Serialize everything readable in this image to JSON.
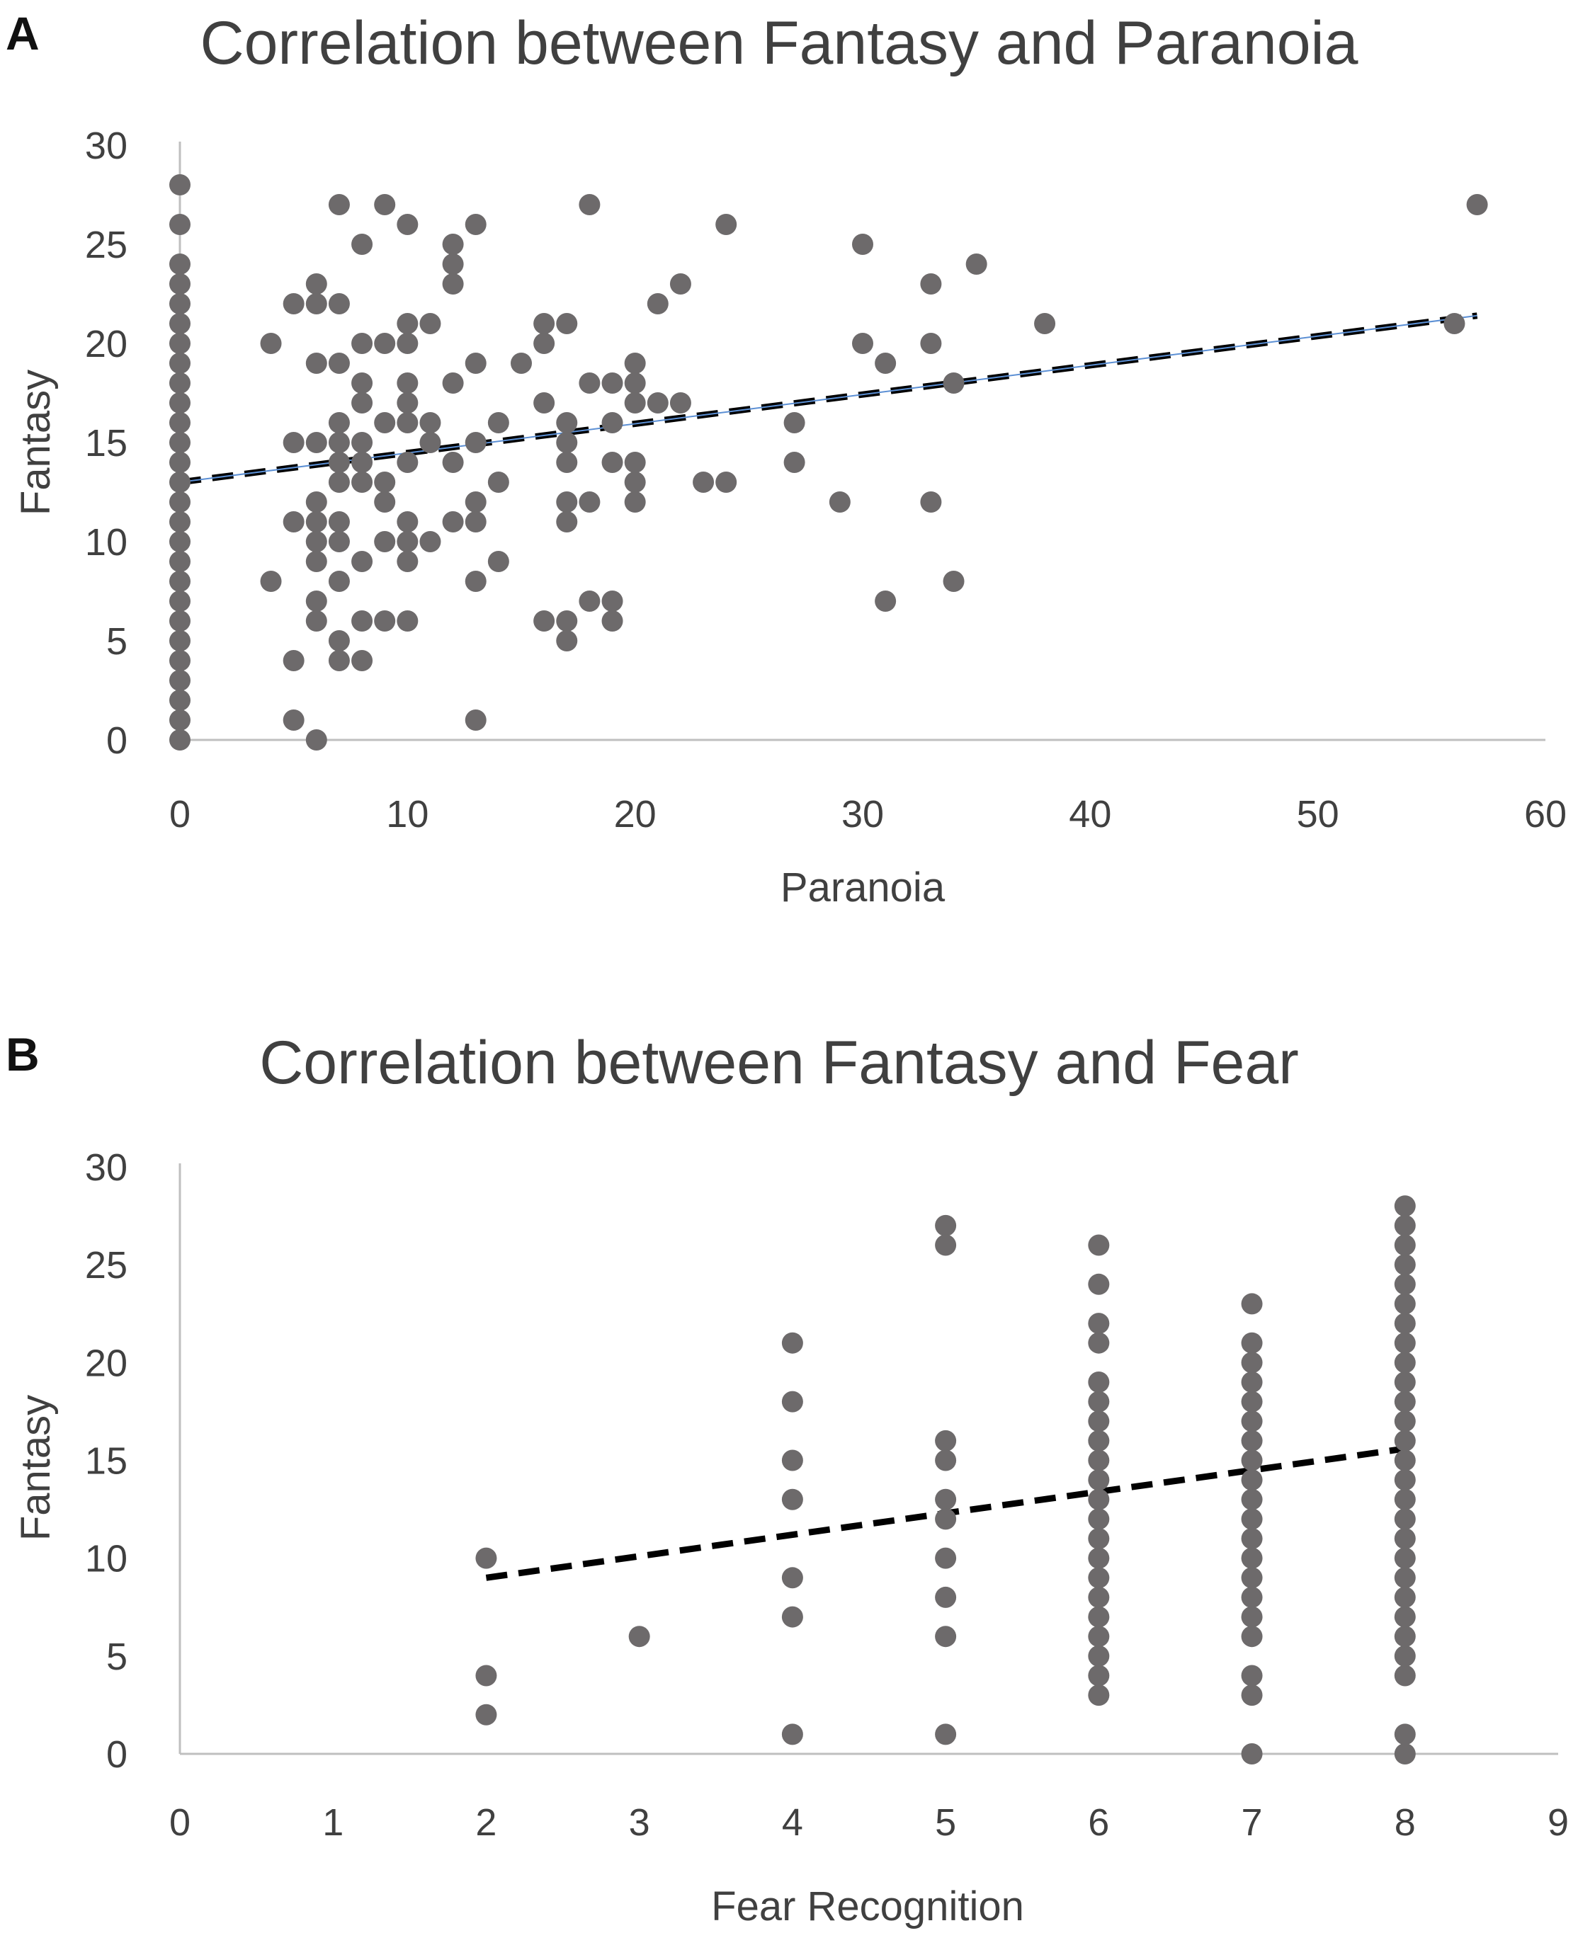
{
  "panels": [
    {
      "letter": "A"
    },
    {
      "letter": "B"
    }
  ],
  "chart_data": [
    {
      "type": "scatter",
      "title": "Correlation between Fantasy and Paranoia",
      "xlabel": "Paranoia",
      "ylabel": "Fantasy",
      "xlim": [
        0,
        60
      ],
      "ylim": [
        0,
        30
      ],
      "xticks": [
        "0",
        "10",
        "20",
        "30",
        "40",
        "50",
        "60"
      ],
      "yticks": [
        "0",
        "5",
        "10",
        "15",
        "20",
        "25",
        "30"
      ],
      "grid": false,
      "trendline": {
        "style": "dashed",
        "x": [
          0,
          57
        ],
        "y": [
          13,
          21.4
        ]
      },
      "points": [
        [
          0,
          0
        ],
        [
          0,
          1
        ],
        [
          0,
          2
        ],
        [
          0,
          3
        ],
        [
          0,
          4
        ],
        [
          0,
          5
        ],
        [
          0,
          6
        ],
        [
          0,
          7
        ],
        [
          0,
          8
        ],
        [
          0,
          9
        ],
        [
          0,
          10
        ],
        [
          0,
          11
        ],
        [
          0,
          12
        ],
        [
          0,
          13
        ],
        [
          0,
          14
        ],
        [
          0,
          15
        ],
        [
          0,
          16
        ],
        [
          0,
          17
        ],
        [
          0,
          18
        ],
        [
          0,
          19
        ],
        [
          0,
          20
        ],
        [
          0,
          21
        ],
        [
          0,
          22
        ],
        [
          0,
          23
        ],
        [
          0,
          24
        ],
        [
          0,
          26
        ],
        [
          0,
          28
        ],
        [
          4,
          20
        ],
        [
          4,
          8
        ],
        [
          5,
          22
        ],
        [
          5,
          15
        ],
        [
          5,
          11
        ],
        [
          5,
          4
        ],
        [
          5,
          1
        ],
        [
          6,
          23
        ],
        [
          6,
          22
        ],
        [
          6,
          19
        ],
        [
          6,
          15
        ],
        [
          6,
          12
        ],
        [
          6,
          11
        ],
        [
          6,
          10
        ],
        [
          6,
          9
        ],
        [
          6,
          7
        ],
        [
          6,
          6
        ],
        [
          6,
          0
        ],
        [
          7,
          27
        ],
        [
          7,
          22
        ],
        [
          7,
          19
        ],
        [
          7,
          16
        ],
        [
          7,
          15
        ],
        [
          7,
          14
        ],
        [
          7,
          13
        ],
        [
          7,
          11
        ],
        [
          7,
          10
        ],
        [
          7,
          8
        ],
        [
          7,
          5
        ],
        [
          7,
          4
        ],
        [
          8,
          25
        ],
        [
          8,
          20
        ],
        [
          8,
          18
        ],
        [
          8,
          17
        ],
        [
          8,
          15
        ],
        [
          8,
          14
        ],
        [
          8,
          13
        ],
        [
          8,
          9
        ],
        [
          8,
          6
        ],
        [
          8,
          4
        ],
        [
          9,
          27
        ],
        [
          9,
          20
        ],
        [
          9,
          16
        ],
        [
          9,
          13
        ],
        [
          9,
          12
        ],
        [
          9,
          10
        ],
        [
          9,
          6
        ],
        [
          10,
          26
        ],
        [
          10,
          21
        ],
        [
          10,
          20
        ],
        [
          10,
          18
        ],
        [
          10,
          17
        ],
        [
          10,
          16
        ],
        [
          10,
          14
        ],
        [
          10,
          11
        ],
        [
          10,
          10
        ],
        [
          10,
          9
        ],
        [
          10,
          6
        ],
        [
          11,
          21
        ],
        [
          11,
          16
        ],
        [
          11,
          15
        ],
        [
          11,
          10
        ],
        [
          12,
          25
        ],
        [
          12,
          24
        ],
        [
          12,
          23
        ],
        [
          12,
          18
        ],
        [
          12,
          14
        ],
        [
          12,
          11
        ],
        [
          13,
          26
        ],
        [
          13,
          19
        ],
        [
          13,
          15
        ],
        [
          13,
          12
        ],
        [
          13,
          11
        ],
        [
          13,
          8
        ],
        [
          13,
          1
        ],
        [
          14,
          16
        ],
        [
          14,
          13
        ],
        [
          14,
          9
        ],
        [
          15,
          19
        ],
        [
          16,
          21
        ],
        [
          16,
          20
        ],
        [
          16,
          17
        ],
        [
          16,
          6
        ],
        [
          17,
          21
        ],
        [
          17,
          16
        ],
        [
          17,
          15
        ],
        [
          17,
          14
        ],
        [
          17,
          12
        ],
        [
          17,
          11
        ],
        [
          17,
          6
        ],
        [
          17,
          5
        ],
        [
          18,
          27
        ],
        [
          18,
          18
        ],
        [
          18,
          12
        ],
        [
          18,
          7
        ],
        [
          19,
          18
        ],
        [
          19,
          16
        ],
        [
          19,
          14
        ],
        [
          19,
          7
        ],
        [
          19,
          6
        ],
        [
          20,
          19
        ],
        [
          20,
          18
        ],
        [
          20,
          17
        ],
        [
          20,
          14
        ],
        [
          20,
          13
        ],
        [
          20,
          12
        ],
        [
          21,
          22
        ],
        [
          21,
          17
        ],
        [
          22,
          23
        ],
        [
          22,
          17
        ],
        [
          23,
          13
        ],
        [
          24,
          26
        ],
        [
          24,
          13
        ],
        [
          27,
          16
        ],
        [
          27,
          14
        ],
        [
          29,
          12
        ],
        [
          30,
          25
        ],
        [
          30,
          20
        ],
        [
          31,
          19
        ],
        [
          31,
          7
        ],
        [
          33,
          23
        ],
        [
          33,
          20
        ],
        [
          33,
          12
        ],
        [
          34,
          18
        ],
        [
          34,
          8
        ],
        [
          35,
          24
        ],
        [
          38,
          21
        ],
        [
          56,
          21
        ],
        [
          57,
          27
        ]
      ]
    },
    {
      "type": "scatter",
      "title": "Correlation between Fantasy and Fear",
      "xlabel": "Fear Recognition",
      "ylabel": "Fantasy",
      "xlim": [
        0,
        9
      ],
      "ylim": [
        0,
        30
      ],
      "xticks": [
        "0",
        "1",
        "2",
        "3",
        "4",
        "5",
        "6",
        "7",
        "8",
        "9"
      ],
      "yticks": [
        "0",
        "5",
        "10",
        "15",
        "20",
        "25",
        "30"
      ],
      "grid": false,
      "trendline": {
        "style": "dashed",
        "x": [
          2,
          8
        ],
        "y": [
          9,
          15.6
        ]
      },
      "points": [
        [
          2,
          10
        ],
        [
          2,
          4
        ],
        [
          2,
          2
        ],
        [
          3,
          6
        ],
        [
          4,
          21
        ],
        [
          4,
          18
        ],
        [
          4,
          15
        ],
        [
          4,
          13
        ],
        [
          4,
          9
        ],
        [
          4,
          7
        ],
        [
          4,
          1
        ],
        [
          5,
          27
        ],
        [
          5,
          26
        ],
        [
          5,
          16
        ],
        [
          5,
          15
        ],
        [
          5,
          13
        ],
        [
          5,
          12
        ],
        [
          5,
          10
        ],
        [
          5,
          8
        ],
        [
          5,
          6
        ],
        [
          5,
          1
        ],
        [
          6,
          3
        ],
        [
          6,
          4
        ],
        [
          6,
          5
        ],
        [
          6,
          6
        ],
        [
          6,
          7
        ],
        [
          6,
          8
        ],
        [
          6,
          9
        ],
        [
          6,
          10
        ],
        [
          6,
          11
        ],
        [
          6,
          12
        ],
        [
          6,
          13
        ],
        [
          6,
          14
        ],
        [
          6,
          15
        ],
        [
          6,
          16
        ],
        [
          6,
          17
        ],
        [
          6,
          18
        ],
        [
          6,
          19
        ],
        [
          6,
          21
        ],
        [
          6,
          22
        ],
        [
          6,
          24
        ],
        [
          6,
          26
        ],
        [
          7,
          0
        ],
        [
          7,
          3
        ],
        [
          7,
          4
        ],
        [
          7,
          6
        ],
        [
          7,
          7
        ],
        [
          7,
          8
        ],
        [
          7,
          9
        ],
        [
          7,
          10
        ],
        [
          7,
          11
        ],
        [
          7,
          12
        ],
        [
          7,
          13
        ],
        [
          7,
          14
        ],
        [
          7,
          15
        ],
        [
          7,
          16
        ],
        [
          7,
          17
        ],
        [
          7,
          18
        ],
        [
          7,
          19
        ],
        [
          7,
          20
        ],
        [
          7,
          21
        ],
        [
          7,
          23
        ],
        [
          8,
          0
        ],
        [
          8,
          1
        ],
        [
          8,
          4
        ],
        [
          8,
          5
        ],
        [
          8,
          6
        ],
        [
          8,
          7
        ],
        [
          8,
          8
        ],
        [
          8,
          9
        ],
        [
          8,
          10
        ],
        [
          8,
          11
        ],
        [
          8,
          12
        ],
        [
          8,
          13
        ],
        [
          8,
          14
        ],
        [
          8,
          15
        ],
        [
          8,
          16
        ],
        [
          8,
          17
        ],
        [
          8,
          18
        ],
        [
          8,
          19
        ],
        [
          8,
          20
        ],
        [
          8,
          21
        ],
        [
          8,
          22
        ],
        [
          8,
          23
        ],
        [
          8,
          24
        ],
        [
          8,
          25
        ],
        [
          8,
          26
        ],
        [
          8,
          27
        ],
        [
          8,
          28
        ]
      ]
    }
  ]
}
